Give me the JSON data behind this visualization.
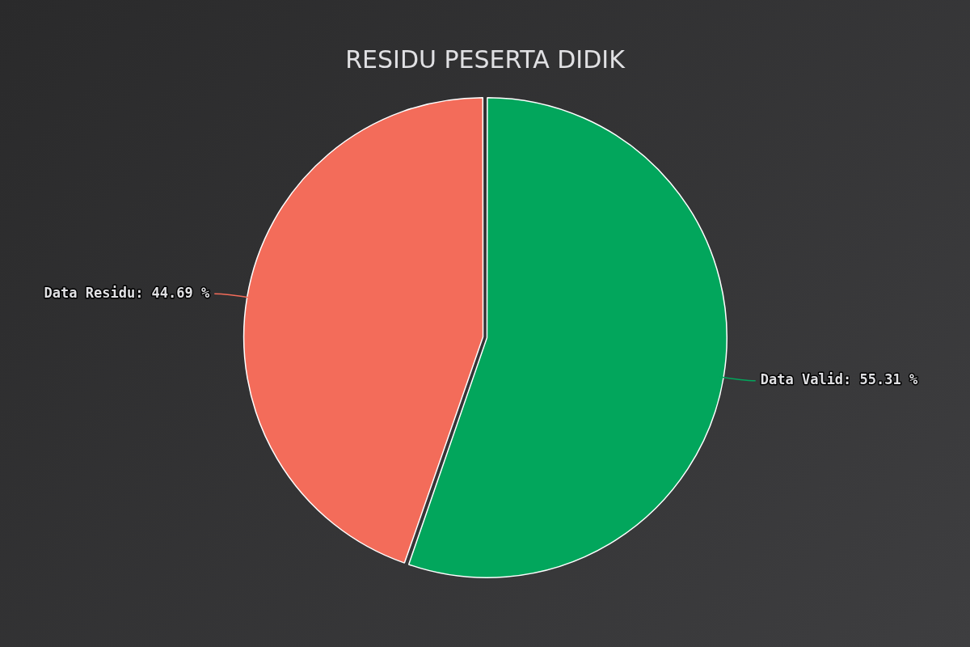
{
  "chart_data": {
    "type": "pie",
    "title": "RESIDU PESERTA DIDIK",
    "categories": [
      "Data Valid",
      "Data Residu"
    ],
    "values": [
      55.31,
      44.69
    ],
    "colors": [
      "#02a65c",
      "#f36c5a"
    ],
    "value_labels": [
      "55.31 %",
      "44.69 %"
    ],
    "legend": false
  }
}
